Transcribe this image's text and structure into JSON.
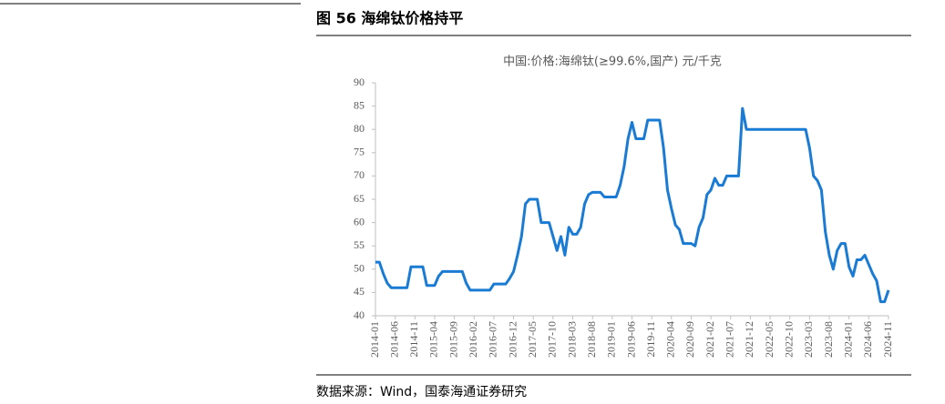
{
  "figure_label": "图 56 海绵钛价格持平",
  "source": "数据来源：Wind，国泰海通证券研究",
  "chart_data": {
    "type": "line",
    "title": "中国:价格:海绵钛(≥99.6%,国产) 元/千克",
    "categories": [
      "2014-01",
      null,
      null,
      null,
      null,
      "2014-06",
      null,
      null,
      null,
      null,
      "2014-11",
      null,
      null,
      null,
      null,
      "2015-04",
      null,
      null,
      null,
      null,
      "2015-09",
      null,
      null,
      null,
      null,
      "2016-02",
      null,
      null,
      null,
      null,
      "2016-07",
      null,
      null,
      null,
      null,
      "2016-12",
      null,
      null,
      null,
      null,
      "2017-05",
      null,
      null,
      null,
      null,
      "2017-10",
      null,
      null,
      null,
      null,
      "2018-03",
      null,
      null,
      null,
      null,
      "2018-08",
      null,
      null,
      null,
      null,
      "2019-01",
      null,
      null,
      null,
      null,
      "2019-06",
      null,
      null,
      null,
      null,
      "2019-11",
      null,
      null,
      null,
      null,
      "2020-04",
      null,
      null,
      null,
      null,
      "2020-09",
      null,
      null,
      null,
      null,
      "2021-02",
      null,
      null,
      null,
      null,
      "2021-07",
      null,
      null,
      null,
      null,
      "2021-12",
      null,
      null,
      null,
      null,
      "2022-05",
      null,
      null,
      null,
      null,
      "2022-10",
      null,
      null,
      null,
      null,
      "2023-03",
      null,
      null,
      null,
      null,
      "2023-08",
      null,
      null,
      null,
      null,
      "2024-01",
      null,
      null,
      null,
      null,
      "2024-06",
      null,
      null,
      null,
      null,
      "2024-11"
    ],
    "series": [
      {
        "name": "中国:价格:海绵钛(≥99.6%,国产)",
        "color": "#1a7bd4",
        "values": [
          51.5,
          51.5,
          49,
          47,
          46,
          46,
          46,
          46,
          46,
          50.5,
          50.5,
          50.5,
          50.5,
          46.5,
          46.5,
          46.5,
          48.5,
          49.5,
          49.5,
          49.5,
          49.5,
          49.5,
          49.5,
          47,
          45.5,
          45.5,
          45.5,
          45.5,
          45.5,
          45.5,
          46.8,
          46.8,
          46.8,
          46.8,
          48,
          49.5,
          53,
          57,
          64,
          65,
          65,
          65,
          60,
          60,
          60,
          57,
          54,
          57,
          53,
          59,
          57.5,
          57.5,
          59,
          64,
          66,
          66.5,
          66.5,
          66.5,
          65.5,
          65.5,
          65.5,
          65.5,
          68,
          72,
          78,
          81.5,
          78,
          78,
          78,
          82,
          82,
          82,
          82,
          76,
          67,
          63,
          59.5,
          58.5,
          55.5,
          55.5,
          55.5,
          55,
          59,
          61,
          66,
          67,
          69.5,
          68,
          68,
          70,
          70,
          70,
          70,
          84.5,
          80,
          80,
          80,
          80,
          80,
          80,
          80,
          80,
          80,
          80,
          80,
          80,
          80,
          80,
          80,
          80,
          76,
          70,
          69,
          67,
          58,
          53,
          50,
          54,
          55.5,
          55.5,
          50.5,
          48.5,
          52,
          52,
          53,
          51,
          49,
          47.5,
          43,
          43,
          45.5
        ]
      }
    ],
    "ylim": [
      40,
      90
    ],
    "yticks": [
      40,
      45,
      50,
      55,
      60,
      65,
      70,
      75,
      80,
      85,
      90
    ],
    "grid": false
  }
}
